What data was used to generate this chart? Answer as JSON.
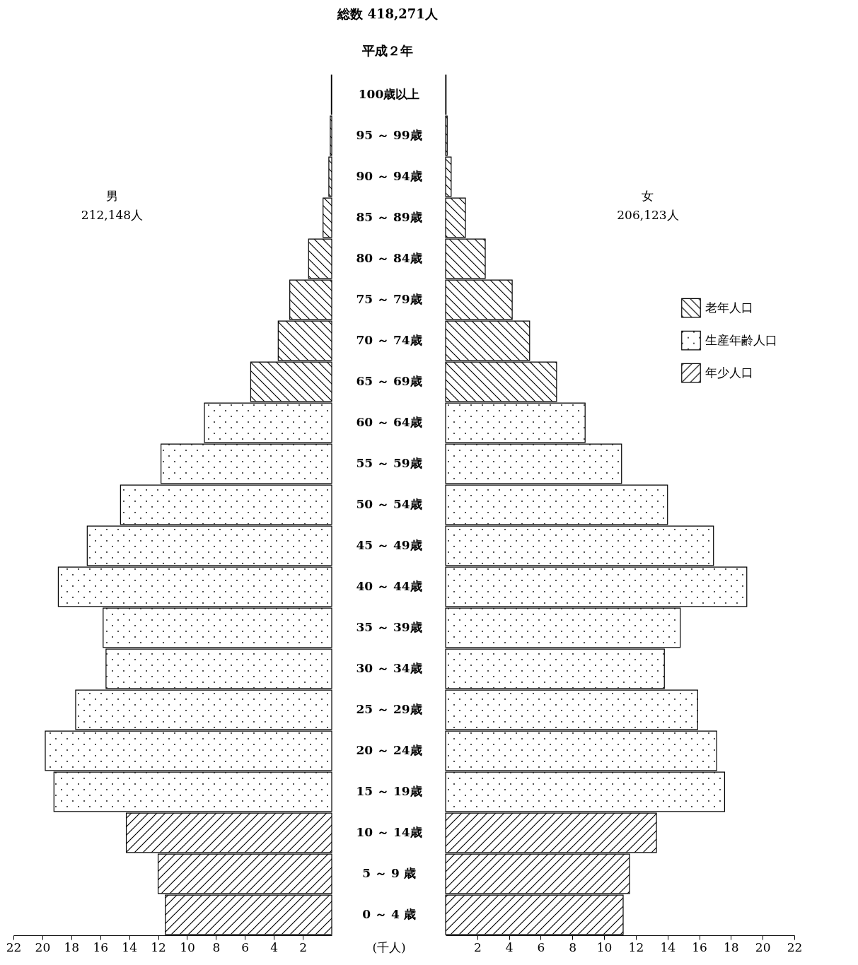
{
  "chart_data": [
    {
      "type": "bar",
      "orientation": "horizontal",
      "title": "総数 418,271人",
      "subtitle": "平成２年",
      "xlabel": "(千人)",
      "annotations": [
        "男",
        "212,148人"
      ],
      "categories": [
        "100歳以上",
        "95 ～ 99歳",
        "90 ～ 94歳",
        "85 ～ 89歳",
        "80 ～ 84歳",
        "75 ～ 79歳",
        "70 ～ 74歳",
        "65 ～ 69歳",
        "60 ～ 64歳",
        "55 ～ 59歳",
        "50 ～ 54歳",
        "45 ～ 49歳",
        "40 ～ 44歳",
        "35 ～ 39歳",
        "30 ～ 34歳",
        "25 ～ 29歳",
        "20 ～ 24歳",
        "15 ～ 19歳",
        "10 ～ 14歳",
        "5 ～ 9 歳",
        "0 ～ 4 歳"
      ],
      "series": [
        {
          "color": "#000000",
          "values": [
            0.03,
            0.1,
            0.2,
            0.6,
            1.6,
            2.9,
            3.7,
            5.6,
            null,
            null,
            null,
            null,
            null,
            null,
            null,
            null,
            null,
            null,
            null,
            null,
            null
          ]
        },
        {
          "color": "#000000",
          "values": [
            null,
            null,
            null,
            null,
            null,
            null,
            null,
            null,
            8.8,
            11.8,
            14.6,
            16.9,
            18.9,
            15.8,
            15.6,
            17.7,
            19.8,
            19.2,
            null,
            null,
            null
          ]
        },
        {
          "color": "#000000",
          "values": [
            null,
            null,
            null,
            null,
            null,
            null,
            null,
            null,
            null,
            null,
            null,
            null,
            null,
            null,
            null,
            null,
            null,
            null,
            14.2,
            12.0,
            11.5
          ]
        }
      ],
      "xlim": [
        22,
        0
      ],
      "xticks": [
        2,
        4,
        6,
        8,
        10,
        12,
        14,
        16,
        18,
        20,
        22
      ]
    },
    {
      "type": "bar",
      "orientation": "horizontal",
      "annotations": [
        "女",
        "206,123人"
      ],
      "categories": [
        null,
        null,
        null,
        null,
        null,
        null,
        null,
        null,
        null,
        null,
        null,
        null,
        null,
        null,
        null,
        null,
        null,
        null,
        null,
        null,
        null
      ],
      "series": [
        {
          "name": "老年人口",
          "color": "#000000",
          "values": [
            0.03,
            0.1,
            0.35,
            1.25,
            2.5,
            4.2,
            5.3,
            7.0,
            null,
            null,
            null,
            null,
            null,
            null,
            null,
            null,
            null,
            null,
            null,
            null,
            null
          ]
        },
        {
          "name": "生産年齢人口",
          "color": "#000000",
          "values": [
            null,
            null,
            null,
            null,
            null,
            null,
            null,
            null,
            8.8,
            11.1,
            14.0,
            16.9,
            19.0,
            14.8,
            13.8,
            15.9,
            17.1,
            17.6,
            null,
            null,
            null
          ]
        },
        {
          "name": "年少人口",
          "color": "#000000",
          "values": [
            null,
            null,
            null,
            null,
            null,
            null,
            null,
            null,
            null,
            null,
            null,
            null,
            null,
            null,
            null,
            null,
            null,
            null,
            13.3,
            11.6,
            11.2
          ]
        }
      ],
      "xlim": [
        0,
        22
      ],
      "xticks": [
        2,
        4,
        6,
        8,
        10,
        12,
        14,
        16,
        18,
        20,
        22
      ],
      "legend": "right"
    }
  ]
}
